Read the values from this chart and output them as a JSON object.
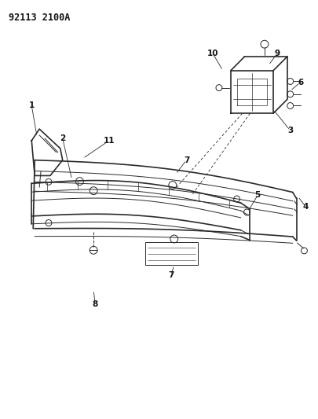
{
  "title": "92113 2100A",
  "bg_color": "#ffffff",
  "line_color": "#2a2a2a",
  "label_color": "#111111",
  "fig_width": 4.06,
  "fig_height": 5.33,
  "dpi": 100,
  "beam_color": "#444444",
  "fascia_color": "#555555"
}
